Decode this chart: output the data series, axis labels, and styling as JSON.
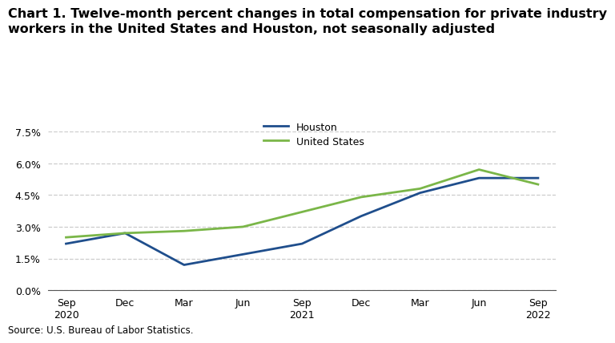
{
  "title": "Chart 1. Twelve-month percent changes in total compensation for private industry\nworkers in the United States and Houston, not seasonally adjusted",
  "source": "Source: U.S. Bureau of Labor Statistics.",
  "x_labels": [
    "Sep\n2020",
    "Dec",
    "Mar",
    "Jun",
    "Sep\n2021",
    "Dec",
    "Mar",
    "Jun",
    "Sep\n2022"
  ],
  "houston": [
    2.2,
    2.7,
    1.2,
    1.7,
    2.2,
    3.5,
    4.6,
    5.3,
    5.3
  ],
  "us": [
    2.5,
    2.7,
    2.8,
    3.0,
    3.7,
    4.4,
    4.8,
    5.7,
    5.0
  ],
  "houston_color": "#1f4e8c",
  "us_color": "#7ab648",
  "line_width": 2.0,
  "ylim": [
    0.0,
    7.5
  ],
  "yticks": [
    0.0,
    1.5,
    3.0,
    4.5,
    6.0,
    7.5
  ],
  "ytick_labels": [
    "0.0%",
    "1.5%",
    "3.0%",
    "4.5%",
    "6.0%",
    "7.5%"
  ],
  "fig_width": 7.2,
  "fig_height": 4.13,
  "bg_color": "#ffffff",
  "grid_color": "#cccccc",
  "legend_labels": [
    "Houston",
    "United States"
  ],
  "title_fontsize": 11.5,
  "tick_fontsize": 9,
  "source_fontsize": 8.5
}
